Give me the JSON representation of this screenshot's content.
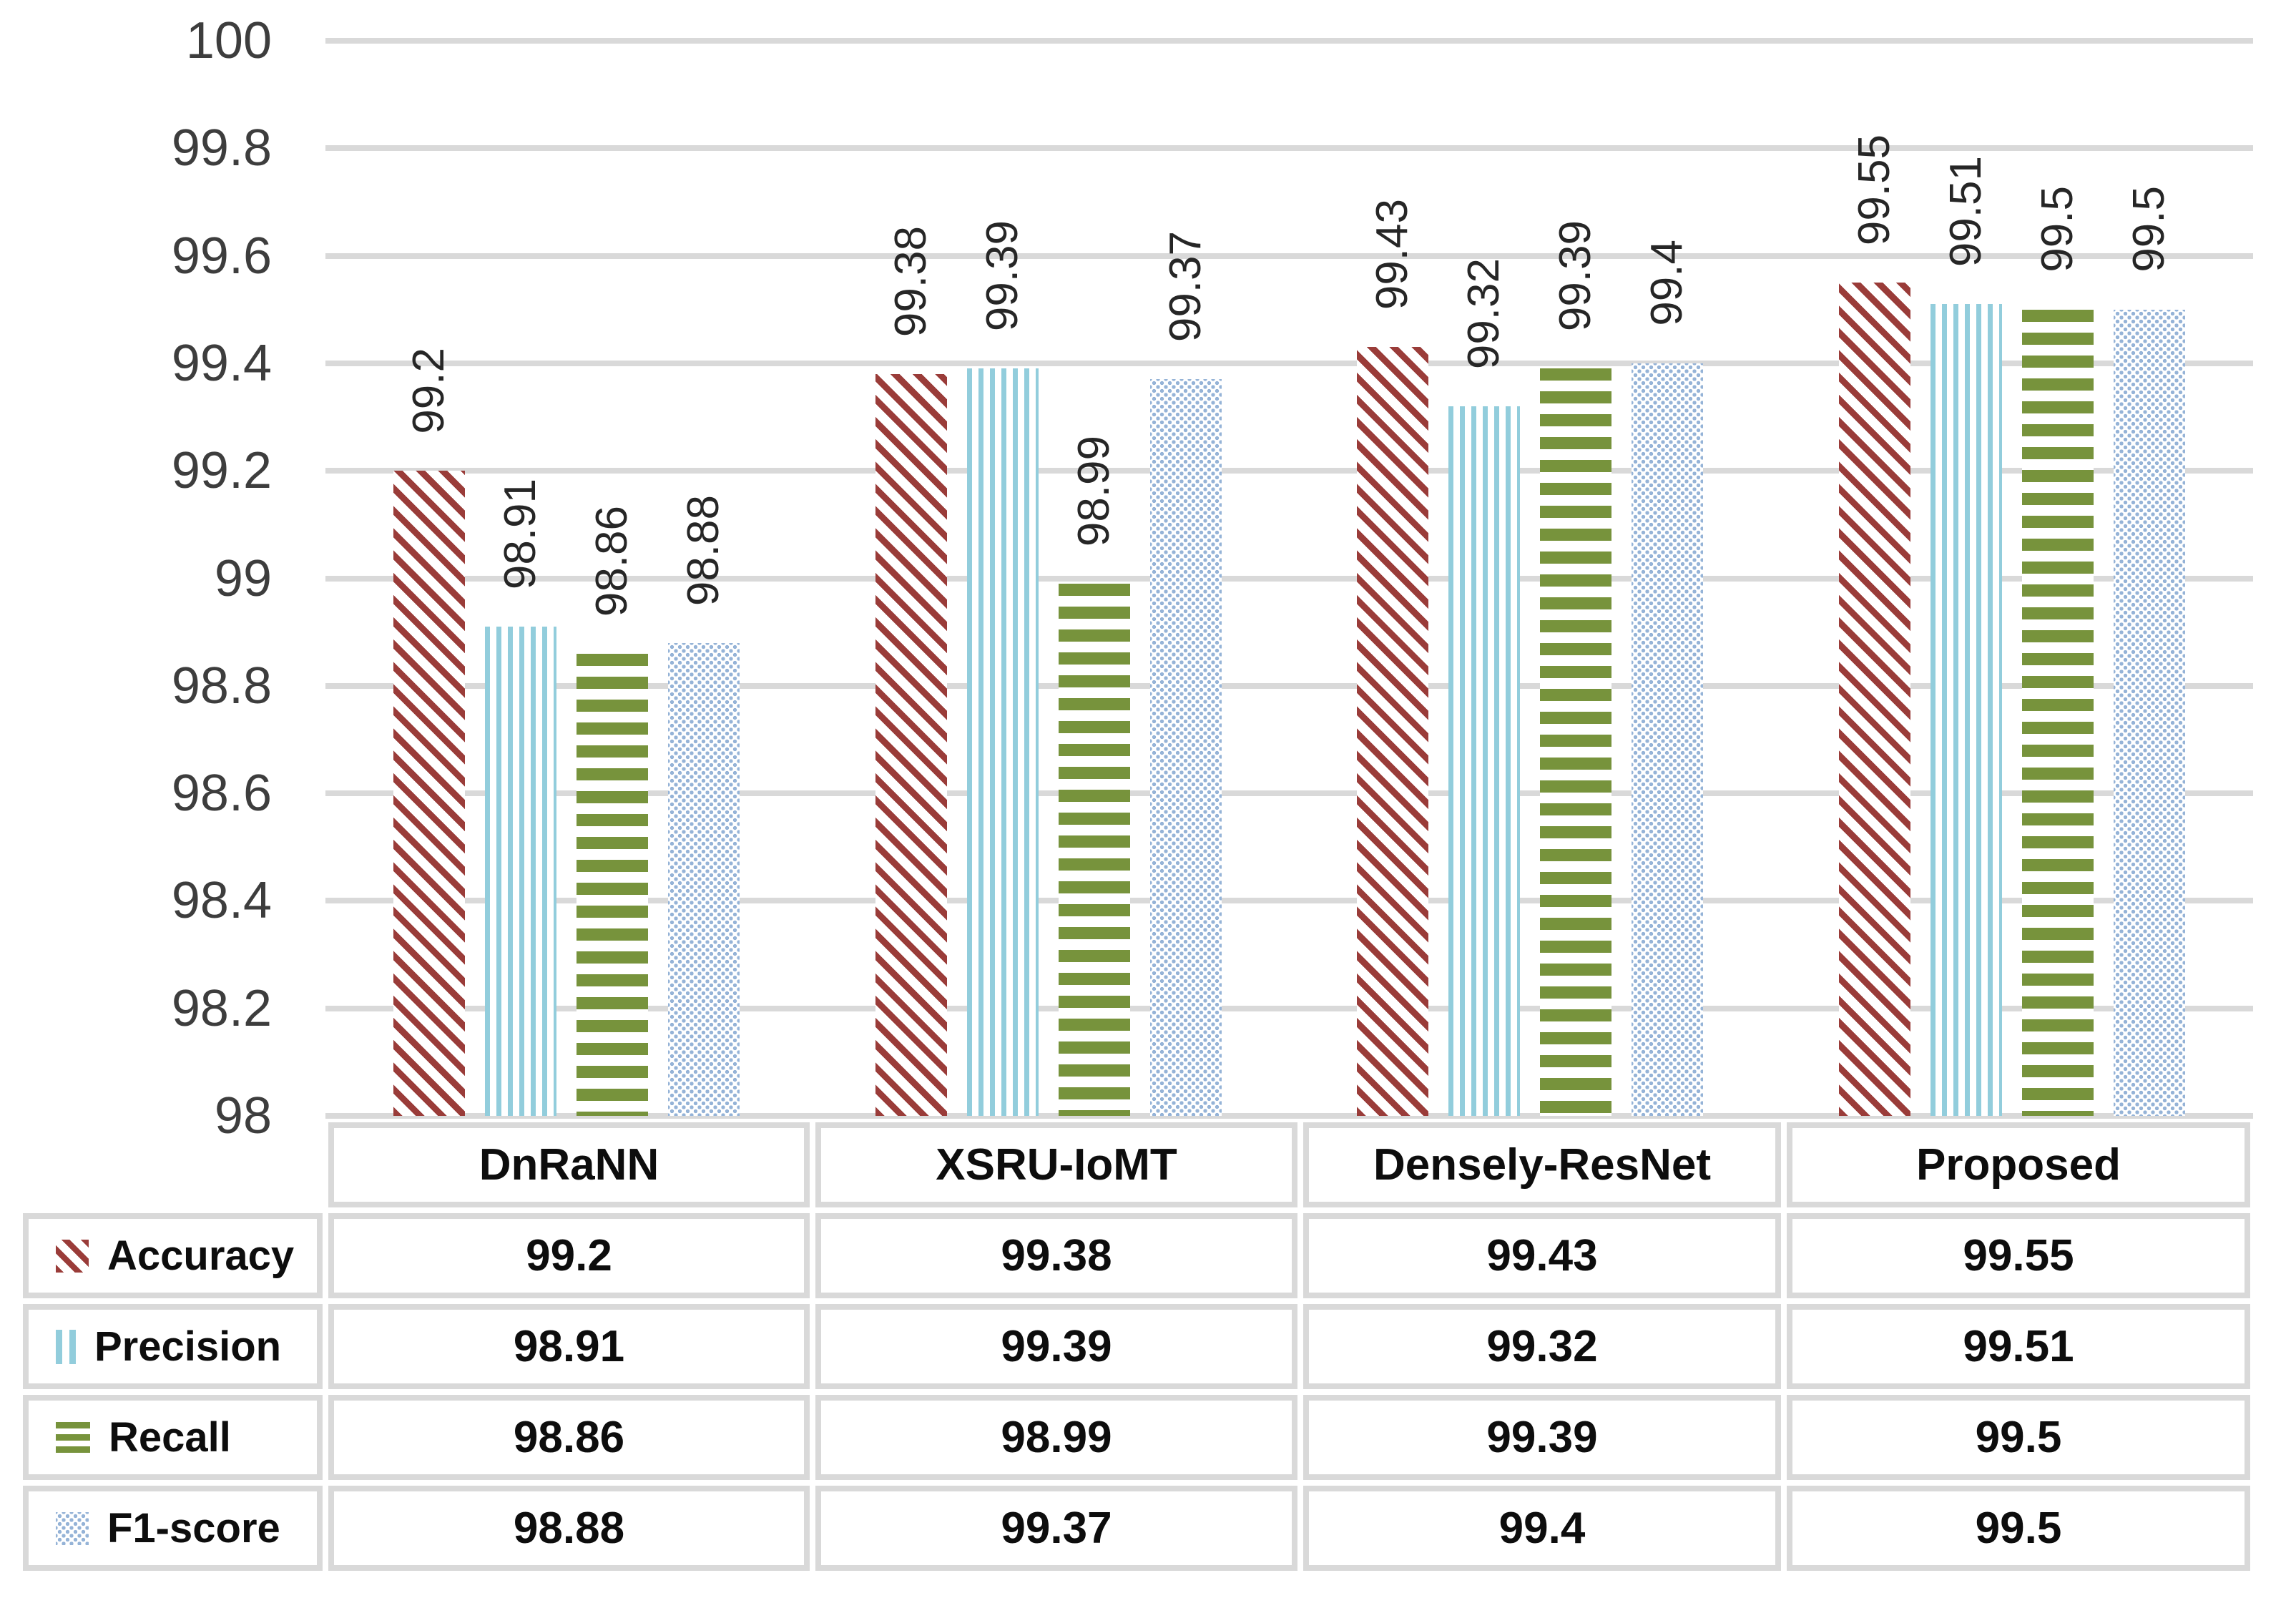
{
  "chart_data": {
    "type": "bar",
    "title": "",
    "xlabel": "",
    "ylabel": "",
    "categories": [
      "DnRaNN",
      "XSRU-IoMT",
      "Densely-ResNet",
      "Proposed"
    ],
    "series": [
      {
        "name": "Accuracy",
        "pattern": "diagonal-stripes",
        "color": "#9a3c39",
        "values": [
          99.2,
          99.38,
          99.43,
          99.55
        ],
        "labels": [
          "99.2",
          "99.38",
          "99.43",
          "99.55"
        ]
      },
      {
        "name": "Precision",
        "pattern": "vertical-stripes",
        "color": "#92cddc",
        "values": [
          98.91,
          99.39,
          99.32,
          99.51
        ],
        "labels": [
          "98.91",
          "99.39",
          "99.32",
          "99.51"
        ]
      },
      {
        "name": "Recall",
        "pattern": "horizontal-stripes",
        "color": "#77933c",
        "values": [
          98.86,
          98.99,
          99.39,
          99.5
        ],
        "labels": [
          "98.86",
          "98.99",
          "99.39",
          "99.5"
        ]
      },
      {
        "name": "F1-score",
        "pattern": "dots",
        "color": "#95b3d7",
        "values": [
          98.88,
          99.37,
          99.4,
          99.5
        ],
        "labels": [
          "98.88",
          "99.37",
          "99.4",
          "99.5"
        ]
      }
    ],
    "ylim": [
      98,
      100
    ],
    "ytick_step": 0.2,
    "yticks": [
      "100",
      "99.8",
      "99.6",
      "99.4",
      "99.2",
      "99",
      "98.8",
      "98.6",
      "98.4",
      "98.2",
      "98"
    ],
    "grid": true,
    "gridline_color": "#d9d9d9",
    "value_label_rotation": -90,
    "legend_position": "table-left"
  },
  "table": {
    "border_color": "#d9d9d9",
    "column_headers": [
      "DnRaNN",
      "XSRU-IoMT",
      "Densely-ResNet",
      "Proposed"
    ],
    "rows": [
      {
        "header": "Accuracy",
        "cells": [
          "99.2",
          "99.38",
          "99.43",
          "99.55"
        ]
      },
      {
        "header": "Precision",
        "cells": [
          "98.91",
          "99.39",
          "99.32",
          "99.51"
        ]
      },
      {
        "header": "Recall",
        "cells": [
          "98.86",
          "98.99",
          "99.39",
          "99.5"
        ]
      },
      {
        "header": "F1-score",
        "cells": [
          "98.88",
          "99.37",
          "99.4",
          "99.5"
        ]
      }
    ]
  }
}
